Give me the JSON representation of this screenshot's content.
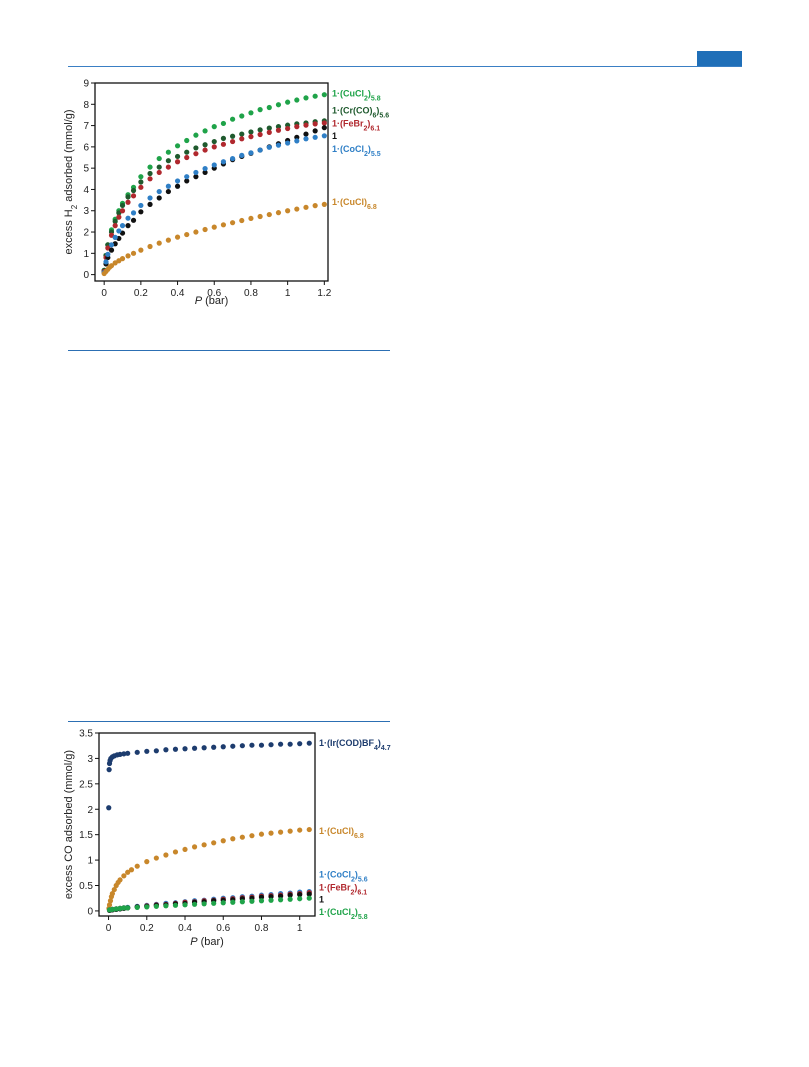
{
  "page": {
    "header_accent": "#1f6fb8"
  },
  "chart_data": [
    {
      "type": "scatter",
      "title": "",
      "xlabel_var": "P",
      "xlabel_unit": "(bar)",
      "ylabel_pre": "excess H",
      "ylabel_sub": "2",
      "ylabel_post": " adsorbed (mmol/g)",
      "xlim": [
        -0.05,
        1.22
      ],
      "ylim": [
        -0.3,
        9
      ],
      "xticks": [
        0,
        0.2,
        0.4,
        0.6,
        0.8,
        1,
        1.2
      ],
      "yticks": [
        0,
        1,
        2,
        3,
        4,
        5,
        6,
        7,
        8,
        9
      ],
      "grid": false,
      "legend": "right, inline labels",
      "series": [
        {
          "name": "1·(CuCl2)5.8",
          "base": "1·(CuCl",
          "sub1": "2",
          "mid": ")",
          "sub2": "5.8",
          "color": "#1fa349",
          "label_y": 8.5,
          "x": [
            0,
            0.01,
            0.02,
            0.04,
            0.06,
            0.08,
            0.1,
            0.13,
            0.16,
            0.2,
            0.25,
            0.3,
            0.35,
            0.4,
            0.45,
            0.5,
            0.55,
            0.6,
            0.65,
            0.7,
            0.75,
            0.8,
            0.85,
            0.9,
            0.95,
            1.0,
            1.05,
            1.1,
            1.15,
            1.2
          ],
          "y": [
            0.2,
            0.9,
            1.4,
            2.1,
            2.6,
            3.0,
            3.35,
            3.75,
            4.1,
            4.6,
            5.05,
            5.45,
            5.75,
            6.05,
            6.3,
            6.55,
            6.75,
            6.95,
            7.1,
            7.3,
            7.45,
            7.6,
            7.75,
            7.85,
            7.98,
            8.1,
            8.2,
            8.3,
            8.38,
            8.45
          ]
        },
        {
          "name": "1·(Cr(CO)6)5.6",
          "base": "1·(Cr(CO)",
          "sub1": "6",
          "mid": ")",
          "sub2": "5.6",
          "color": "#1f5a2e",
          "label_y": 7.7,
          "x": [
            0,
            0.01,
            0.02,
            0.04,
            0.06,
            0.08,
            0.1,
            0.13,
            0.16,
            0.2,
            0.25,
            0.3,
            0.35,
            0.4,
            0.45,
            0.5,
            0.55,
            0.6,
            0.65,
            0.7,
            0.75,
            0.8,
            0.85,
            0.9,
            0.95,
            1.0,
            1.05,
            1.1,
            1.15,
            1.2
          ],
          "y": [
            0.2,
            0.9,
            1.4,
            2.0,
            2.5,
            2.9,
            3.25,
            3.65,
            3.95,
            4.35,
            4.75,
            5.05,
            5.35,
            5.55,
            5.75,
            5.95,
            6.1,
            6.25,
            6.4,
            6.5,
            6.6,
            6.7,
            6.8,
            6.88,
            6.95,
            7.02,
            7.08,
            7.12,
            7.18,
            7.22
          ]
        },
        {
          "name": "1·(FeBr2)6.1",
          "base": "1·(FeBr",
          "sub1": "2",
          "mid": ")",
          "sub2": "6.1",
          "color": "#b0282e",
          "label_y": 7.1,
          "x": [
            0,
            0.01,
            0.02,
            0.04,
            0.06,
            0.08,
            0.1,
            0.13,
            0.16,
            0.2,
            0.25,
            0.3,
            0.35,
            0.4,
            0.45,
            0.5,
            0.55,
            0.6,
            0.65,
            0.7,
            0.75,
            0.8,
            0.85,
            0.9,
            0.95,
            1.0,
            1.05,
            1.1,
            1.15,
            1.2
          ],
          "y": [
            0.15,
            0.8,
            1.25,
            1.85,
            2.3,
            2.7,
            3.0,
            3.4,
            3.7,
            4.1,
            4.5,
            4.8,
            5.05,
            5.3,
            5.5,
            5.68,
            5.85,
            6.0,
            6.12,
            6.25,
            6.38,
            6.48,
            6.58,
            6.68,
            6.78,
            6.86,
            6.95,
            7.02,
            7.08,
            7.12
          ]
        },
        {
          "name": "1",
          "base": "1",
          "sub1": "",
          "mid": "",
          "sub2": "",
          "color": "#111111",
          "label_y": 6.5,
          "x": [
            0,
            0.01,
            0.02,
            0.04,
            0.06,
            0.08,
            0.1,
            0.13,
            0.16,
            0.2,
            0.25,
            0.3,
            0.35,
            0.4,
            0.45,
            0.5,
            0.55,
            0.6,
            0.65,
            0.7,
            0.75,
            0.8,
            0.85,
            0.9,
            0.95,
            1.0,
            1.05,
            1.1,
            1.15,
            1.2
          ],
          "y": [
            0.1,
            0.5,
            0.8,
            1.15,
            1.45,
            1.7,
            1.95,
            2.3,
            2.55,
            2.95,
            3.3,
            3.6,
            3.9,
            4.15,
            4.4,
            4.6,
            4.8,
            5.0,
            5.2,
            5.4,
            5.55,
            5.7,
            5.85,
            6.0,
            6.15,
            6.3,
            6.45,
            6.6,
            6.75,
            6.9
          ]
        },
        {
          "name": "1·(CoCl2)5.5",
          "base": "1·(CoCl",
          "sub1": "2",
          "mid": ")",
          "sub2": "5.5",
          "color": "#2f7fc6",
          "label_y": 5.9,
          "x": [
            0,
            0.01,
            0.02,
            0.04,
            0.06,
            0.08,
            0.1,
            0.13,
            0.16,
            0.2,
            0.25,
            0.3,
            0.35,
            0.4,
            0.45,
            0.5,
            0.55,
            0.6,
            0.65,
            0.7,
            0.75,
            0.8,
            0.85,
            0.9,
            0.95,
            1.0,
            1.05,
            1.1,
            1.15,
            1.2
          ],
          "y": [
            0.1,
            0.6,
            0.95,
            1.4,
            1.75,
            2.05,
            2.3,
            2.65,
            2.9,
            3.25,
            3.6,
            3.9,
            4.15,
            4.4,
            4.6,
            4.8,
            4.98,
            5.15,
            5.3,
            5.45,
            5.6,
            5.72,
            5.85,
            5.98,
            6.08,
            6.18,
            6.28,
            6.38,
            6.45,
            6.52
          ]
        },
        {
          "name": "1·(CuCl)6.8",
          "base": "1·(CuCl)",
          "sub1": "",
          "mid": "",
          "sub2": "6.8",
          "color": "#c8872b",
          "label_y": 3.4,
          "x": [
            0,
            0.01,
            0.02,
            0.03,
            0.04,
            0.06,
            0.08,
            0.1,
            0.13,
            0.16,
            0.2,
            0.25,
            0.3,
            0.35,
            0.4,
            0.45,
            0.5,
            0.55,
            0.6,
            0.65,
            0.7,
            0.75,
            0.8,
            0.85,
            0.9,
            0.95,
            1.0,
            1.05,
            1.1,
            1.15,
            1.2
          ],
          "y": [
            0.05,
            0.15,
            0.25,
            0.35,
            0.42,
            0.55,
            0.65,
            0.75,
            0.88,
            1.0,
            1.15,
            1.32,
            1.48,
            1.62,
            1.76,
            1.88,
            2.0,
            2.12,
            2.23,
            2.34,
            2.44,
            2.54,
            2.64,
            2.73,
            2.82,
            2.91,
            3.0,
            3.08,
            3.16,
            3.24,
            3.3
          ]
        }
      ]
    },
    {
      "type": "scatter",
      "title": "",
      "xlabel_var": "P",
      "xlabel_unit": "(bar)",
      "ylabel_pre": "excess CO adsorbed (mmol/g)",
      "ylabel_sub": "",
      "ylabel_post": "",
      "xlim": [
        -0.05,
        1.08
      ],
      "ylim": [
        -0.1,
        3.5
      ],
      "xticks": [
        0,
        0.2,
        0.4,
        0.6,
        0.8,
        1
      ],
      "yticks": [
        0,
        0.5,
        1,
        1.5,
        2,
        2.5,
        3,
        3.5
      ],
      "grid": false,
      "legend": "right, inline labels",
      "series": [
        {
          "name": "1·(Ir(COD)BF4)4.7",
          "base": "1·(Ir(COD)BF",
          "sub1": "4",
          "mid": ")",
          "sub2": "4.7",
          "color": "#1d3c6e",
          "label_y": 3.3,
          "x": [
            0.001,
            0.003,
            0.005,
            0.008,
            0.012,
            0.02,
            0.03,
            0.045,
            0.06,
            0.08,
            0.1,
            0.15,
            0.2,
            0.25,
            0.3,
            0.35,
            0.4,
            0.45,
            0.5,
            0.55,
            0.6,
            0.65,
            0.7,
            0.75,
            0.8,
            0.85,
            0.9,
            0.95,
            1.0,
            1.05
          ],
          "y": [
            2.03,
            2.78,
            2.9,
            2.96,
            3.0,
            3.03,
            3.05,
            3.07,
            3.08,
            3.09,
            3.1,
            3.12,
            3.14,
            3.15,
            3.17,
            3.18,
            3.19,
            3.2,
            3.21,
            3.22,
            3.23,
            3.24,
            3.25,
            3.26,
            3.26,
            3.27,
            3.28,
            3.28,
            3.29,
            3.3
          ]
        },
        {
          "name": "1·(CuCl)6.8",
          "base": "1·(CuCl)",
          "sub1": "",
          "mid": "",
          "sub2": "6.8",
          "color": "#c8872b",
          "label_y": 1.57,
          "x": [
            0.002,
            0.005,
            0.01,
            0.015,
            0.02,
            0.03,
            0.04,
            0.05,
            0.06,
            0.08,
            0.1,
            0.12,
            0.15,
            0.2,
            0.25,
            0.3,
            0.35,
            0.4,
            0.45,
            0.5,
            0.55,
            0.6,
            0.65,
            0.7,
            0.75,
            0.8,
            0.85,
            0.9,
            0.95,
            1.0,
            1.05
          ],
          "y": [
            0.05,
            0.12,
            0.2,
            0.28,
            0.34,
            0.42,
            0.5,
            0.56,
            0.61,
            0.69,
            0.76,
            0.81,
            0.88,
            0.97,
            1.04,
            1.1,
            1.16,
            1.21,
            1.26,
            1.3,
            1.34,
            1.38,
            1.42,
            1.45,
            1.48,
            1.51,
            1.53,
            1.55,
            1.57,
            1.59,
            1.6
          ]
        },
        {
          "name": "1·(CoCl2)5.6",
          "base": "1·(CoCl",
          "sub1": "2",
          "mid": ")",
          "sub2": "5.6",
          "color": "#2f7fc6",
          "label_y": 0.72,
          "x": [
            0.005,
            0.02,
            0.04,
            0.06,
            0.08,
            0.1,
            0.15,
            0.2,
            0.25,
            0.3,
            0.35,
            0.4,
            0.45,
            0.5,
            0.55,
            0.6,
            0.65,
            0.7,
            0.75,
            0.8,
            0.85,
            0.9,
            0.95,
            1.0,
            1.05
          ],
          "y": [
            0.02,
            0.03,
            0.04,
            0.05,
            0.06,
            0.07,
            0.09,
            0.11,
            0.13,
            0.15,
            0.16,
            0.18,
            0.2,
            0.21,
            0.23,
            0.25,
            0.26,
            0.28,
            0.29,
            0.31,
            0.32,
            0.34,
            0.35,
            0.37,
            0.38
          ]
        },
        {
          "name": "1·(FeBr2)6.1",
          "base": "1·(FeBr",
          "sub1": "2",
          "mid": ")",
          "sub2": "6.1",
          "color": "#b0282e",
          "label_y": 0.46,
          "x": [
            0.005,
            0.02,
            0.04,
            0.06,
            0.08,
            0.1,
            0.15,
            0.2,
            0.25,
            0.3,
            0.35,
            0.4,
            0.45,
            0.5,
            0.55,
            0.6,
            0.65,
            0.7,
            0.75,
            0.8,
            0.85,
            0.9,
            0.95,
            1.0,
            1.05
          ],
          "y": [
            0.02,
            0.03,
            0.04,
            0.05,
            0.06,
            0.06,
            0.08,
            0.1,
            0.12,
            0.13,
            0.15,
            0.17,
            0.18,
            0.2,
            0.21,
            0.23,
            0.24,
            0.26,
            0.27,
            0.29,
            0.3,
            0.31,
            0.33,
            0.34,
            0.36
          ]
        },
        {
          "name": "1",
          "base": "1",
          "sub1": "",
          "mid": "",
          "sub2": "",
          "color": "#111111",
          "label_y": 0.22,
          "x": [
            0.005,
            0.02,
            0.04,
            0.06,
            0.08,
            0.1,
            0.15,
            0.2,
            0.25,
            0.3,
            0.35,
            0.4,
            0.45,
            0.5,
            0.55,
            0.6,
            0.65,
            0.7,
            0.75,
            0.8,
            0.85,
            0.9,
            0.95,
            1.0,
            1.05
          ],
          "y": [
            0.01,
            0.02,
            0.03,
            0.04,
            0.05,
            0.06,
            0.08,
            0.09,
            0.11,
            0.12,
            0.14,
            0.15,
            0.17,
            0.18,
            0.2,
            0.21,
            0.22,
            0.24,
            0.25,
            0.27,
            0.28,
            0.29,
            0.31,
            0.32,
            0.33
          ]
        },
        {
          "name": "1·(CuCl2)5.8",
          "base": "1·(CuCl",
          "sub1": "2",
          "mid": ")",
          "sub2": "5.8",
          "color": "#1fa349",
          "label_y": -0.02,
          "x": [
            0.005,
            0.02,
            0.04,
            0.06,
            0.08,
            0.1,
            0.15,
            0.2,
            0.25,
            0.3,
            0.35,
            0.4,
            0.45,
            0.5,
            0.55,
            0.6,
            0.65,
            0.7,
            0.75,
            0.8,
            0.85,
            0.9,
            0.95,
            1.0,
            1.05
          ],
          "y": [
            0.02,
            0.03,
            0.04,
            0.05,
            0.06,
            0.06,
            0.07,
            0.08,
            0.09,
            0.1,
            0.11,
            0.12,
            0.13,
            0.14,
            0.15,
            0.16,
            0.17,
            0.18,
            0.19,
            0.2,
            0.21,
            0.22,
            0.23,
            0.24,
            0.25
          ]
        }
      ]
    }
  ]
}
